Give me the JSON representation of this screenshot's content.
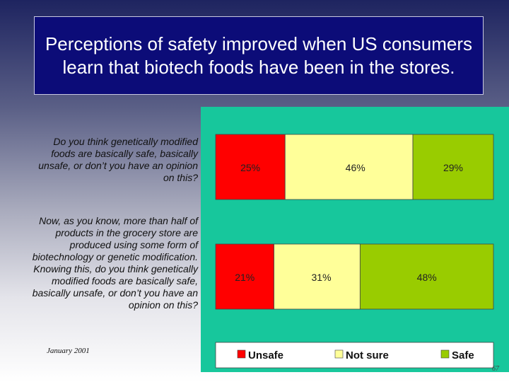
{
  "title": "Perceptions of safety improved when US consumers learn that biotech foods have been in the stores.",
  "questions": [
    "Do you think genetically modified foods are basically safe, basically unsafe, or don’t you have an opinion on this?",
    "Now, as you know, more than half of products in the grocery store are produced using some form of biotechnology or genetic modification.  Knowing this, do you think genetically modified foods are basically safe, basically unsafe, or don’t you have an opinion on this?"
  ],
  "footer": {
    "date": "January 2001",
    "page": "67"
  },
  "colors": {
    "panel": "#17c79c",
    "unsafe": "#ff0000",
    "not_sure": "#ffff99",
    "safe": "#99cc00",
    "title_bg": "#0c0c78"
  },
  "chart_data": {
    "type": "bar",
    "stacked": true,
    "orientation": "horizontal",
    "series": [
      {
        "name": "Unsafe",
        "values": [
          25,
          21
        ],
        "labels": [
          "25%",
          "21%"
        ]
      },
      {
        "name": "Not sure",
        "values": [
          46,
          31
        ],
        "labels": [
          "46%",
          "31%"
        ]
      },
      {
        "name": "Safe",
        "values": [
          29,
          48
        ],
        "labels": [
          "29%",
          "48%"
        ]
      }
    ],
    "xlim": [
      0,
      100
    ],
    "grid": false,
    "legend": "bottom"
  }
}
